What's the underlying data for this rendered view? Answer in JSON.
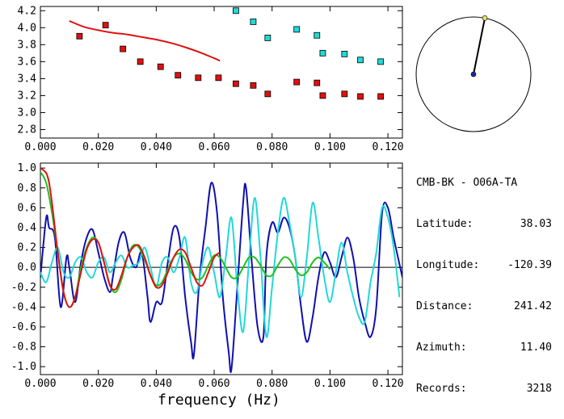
{
  "chart_data": [
    {
      "type": "scatter",
      "title": "",
      "xlim": [
        0.0,
        0.125
      ],
      "ylim": [
        2.7,
        4.25
      ],
      "xticks": [
        "0.000",
        "0.020",
        "0.040",
        "0.060",
        "0.080",
        "0.100",
        "0.120"
      ],
      "yticks": [
        "2.8",
        "3.0",
        "3.2",
        "3.4",
        "3.6",
        "3.8",
        "4.0",
        "4.2"
      ],
      "series": [
        {
          "name": "red-squares",
          "color": "#e01010",
          "kind": "points",
          "x": [
            0.0135,
            0.0225,
            0.0285,
            0.0345,
            0.0415,
            0.0475,
            0.0545,
            0.0615,
            0.0675,
            0.0735,
            0.0785,
            0.0885,
            0.0955,
            0.0975,
            0.105,
            0.1105,
            0.1175
          ],
          "y": [
            3.9,
            4.03,
            3.75,
            3.6,
            3.54,
            3.44,
            3.41,
            3.41,
            3.34,
            3.32,
            3.22,
            3.36,
            3.35,
            3.2,
            3.22,
            3.19,
            3.19
          ]
        },
        {
          "name": "cyan-squares",
          "color": "#22d8d8",
          "kind": "points",
          "x": [
            0.0675,
            0.0735,
            0.0785,
            0.0885,
            0.0955,
            0.0975,
            0.105,
            0.1105,
            0.1175
          ],
          "y": [
            4.2,
            4.07,
            3.88,
            3.98,
            3.91,
            3.7,
            3.69,
            3.62,
            3.6
          ]
        },
        {
          "name": "red-curve",
          "color": "#e01010",
          "kind": "line",
          "x": [
            0.01,
            0.015,
            0.02,
            0.025,
            0.03,
            0.035,
            0.04,
            0.045,
            0.05,
            0.055,
            0.06,
            0.062
          ],
          "y": [
            4.08,
            4.01,
            3.97,
            3.94,
            3.92,
            3.89,
            3.86,
            3.82,
            3.77,
            3.71,
            3.64,
            3.61
          ]
        }
      ]
    },
    {
      "type": "line",
      "title": "",
      "xlabel": "frequency (Hz)",
      "xlim": [
        0.0,
        0.125
      ],
      "ylim": [
        -1.08,
        1.05
      ],
      "xticks": [
        "0.000",
        "0.020",
        "0.040",
        "0.060",
        "0.080",
        "0.100",
        "0.120"
      ],
      "yticks": [
        "-1.0",
        "-0.8",
        "-0.6",
        "-0.4",
        "-0.2",
        "0.0",
        "0.2",
        "0.4",
        "0.6",
        "0.8",
        "1.0"
      ],
      "zero_line": true,
      "series": [
        {
          "name": "blue",
          "color": "#1010b0",
          "x": [
            0.0,
            0.002,
            0.003,
            0.005,
            0.007,
            0.009,
            0.01,
            0.012,
            0.014,
            0.016,
            0.018,
            0.02,
            0.022,
            0.024,
            0.025,
            0.027,
            0.029,
            0.031,
            0.033,
            0.035,
            0.037,
            0.038,
            0.04,
            0.042,
            0.044,
            0.046,
            0.048,
            0.05,
            0.052,
            0.053,
            0.055,
            0.057,
            0.059,
            0.061,
            0.063,
            0.065,
            0.066,
            0.068,
            0.07,
            0.071,
            0.073,
            0.075,
            0.077,
            0.078,
            0.08,
            0.082,
            0.084,
            0.086,
            0.088,
            0.09,
            0.092,
            0.094,
            0.096,
            0.098,
            0.1,
            0.102,
            0.104,
            0.106,
            0.108,
            0.11,
            0.112,
            0.114,
            0.116,
            0.118,
            0.12,
            0.122,
            0.125
          ],
          "y": [
            -0.1,
            0.5,
            0.4,
            0.3,
            -0.4,
            0.1,
            0.0,
            -0.35,
            0.05,
            0.3,
            0.38,
            0.15,
            -0.1,
            -0.25,
            -0.1,
            0.25,
            0.35,
            0.1,
            0.0,
            0.15,
            -0.3,
            -0.55,
            -0.35,
            -0.35,
            0.05,
            0.4,
            0.3,
            -0.3,
            -0.75,
            -0.88,
            -0.1,
            0.4,
            0.85,
            0.55,
            -0.3,
            -0.85,
            -1.02,
            -0.2,
            0.65,
            0.8,
            0.05,
            -0.6,
            -0.7,
            0.1,
            0.45,
            0.35,
            0.5,
            0.4,
            0.1,
            -0.4,
            -0.75,
            -0.5,
            -0.1,
            0.15,
            0.05,
            -0.1,
            0.1,
            0.3,
            0.1,
            -0.3,
            -0.55,
            -0.7,
            -0.4,
            0.55,
            0.6,
            0.3,
            -0.1
          ]
        },
        {
          "name": "cyan",
          "color": "#22d8d8",
          "x": [
            0.0,
            0.002,
            0.004,
            0.006,
            0.008,
            0.01,
            0.012,
            0.014,
            0.016,
            0.018,
            0.02,
            0.022,
            0.024,
            0.026,
            0.028,
            0.03,
            0.032,
            0.034,
            0.036,
            0.038,
            0.04,
            0.042,
            0.044,
            0.046,
            0.048,
            0.05,
            0.052,
            0.054,
            0.056,
            0.058,
            0.06,
            0.062,
            0.064,
            0.066,
            0.068,
            0.07,
            0.072,
            0.074,
            0.076,
            0.078,
            0.08,
            0.082,
            0.084,
            0.086,
            0.088,
            0.09,
            0.092,
            0.094,
            0.096,
            0.098,
            0.1,
            0.102,
            0.104,
            0.106,
            0.108,
            0.11,
            0.112,
            0.114,
            0.116,
            0.118,
            0.12,
            0.122,
            0.124
          ],
          "y": [
            -0.05,
            -0.15,
            0.05,
            0.2,
            -0.05,
            -0.1,
            0.05,
            0.1,
            -0.05,
            -0.1,
            0.05,
            0.1,
            -0.05,
            0.05,
            0.12,
            0.0,
            0.02,
            0.05,
            0.2,
            0.0,
            -0.2,
            0.05,
            0.1,
            -0.05,
            0.1,
            0.3,
            -0.15,
            -0.25,
            0.05,
            0.2,
            -0.05,
            -0.3,
            0.1,
            0.5,
            -0.2,
            -0.65,
            0.05,
            0.7,
            0.1,
            -0.7,
            -0.2,
            0.35,
            0.7,
            0.45,
            0.1,
            -0.3,
            0.1,
            0.65,
            0.3,
            -0.1,
            -0.35,
            -0.05,
            0.25,
            -0.05,
            -0.3,
            -0.5,
            -0.55,
            -0.15,
            0.15,
            0.6,
            0.5,
            0.2,
            -0.3
          ]
        },
        {
          "name": "green",
          "color": "#20c020",
          "x": [
            0.0,
            0.002,
            0.004,
            0.006,
            0.008,
            0.01,
            0.012,
            0.014,
            0.016,
            0.018,
            0.02,
            0.022,
            0.024,
            0.026,
            0.028,
            0.03,
            0.032,
            0.034,
            0.036,
            0.038,
            0.04,
            0.042,
            0.044,
            0.046,
            0.048,
            0.05,
            0.052,
            0.054,
            0.056,
            0.058,
            0.06,
            0.062,
            0.064,
            0.066,
            0.068,
            0.07,
            0.072,
            0.074,
            0.076,
            0.078,
            0.08,
            0.082,
            0.084,
            0.086,
            0.088,
            0.09,
            0.092,
            0.094,
            0.096,
            0.098,
            0.1
          ],
          "y": [
            0.96,
            0.85,
            0.55,
            0.15,
            -0.25,
            -0.4,
            -0.3,
            0.0,
            0.2,
            0.3,
            0.25,
            0.05,
            -0.18,
            -0.25,
            -0.12,
            0.1,
            0.22,
            0.2,
            0.08,
            -0.08,
            -0.18,
            -0.15,
            -0.02,
            0.1,
            0.14,
            0.08,
            -0.05,
            -0.12,
            -0.1,
            0.02,
            0.12,
            0.1,
            0.0,
            -0.1,
            -0.1,
            0.0,
            0.1,
            0.1,
            0.02,
            -0.08,
            -0.08,
            0.02,
            0.1,
            0.08,
            -0.02,
            -0.08,
            -0.05,
            0.05,
            0.1,
            0.05,
            -0.02
          ]
        },
        {
          "name": "red",
          "color": "#e01010",
          "x": [
            0.0,
            0.002,
            0.003,
            0.004,
            0.005,
            0.006,
            0.008,
            0.01,
            0.012,
            0.014,
            0.016,
            0.018,
            0.02,
            0.022,
            0.024,
            0.026,
            0.028,
            0.03,
            0.032,
            0.034,
            0.036,
            0.038,
            0.04,
            0.042,
            0.044,
            0.046,
            0.048,
            0.05,
            0.052,
            0.054,
            0.056,
            0.058,
            0.06,
            0.062
          ],
          "y": [
            1.0,
            0.95,
            0.85,
            0.65,
            0.4,
            0.15,
            -0.25,
            -0.4,
            -0.3,
            -0.05,
            0.18,
            0.28,
            0.25,
            0.05,
            -0.18,
            -0.22,
            -0.08,
            0.1,
            0.2,
            0.22,
            0.1,
            -0.08,
            -0.2,
            -0.18,
            -0.05,
            0.1,
            0.18,
            0.15,
            0.0,
            -0.15,
            -0.18,
            -0.05,
            0.1,
            0.15
          ]
        }
      ]
    }
  ],
  "polar": {
    "azimuth_deg": 11.4
  },
  "station": {
    "name": "CMB-BK - O06A-TA",
    "rows": [
      {
        "label": "Latitude:",
        "value": "38.03"
      },
      {
        "label": "Longitude:",
        "value": "-120.39"
      },
      {
        "label": "Distance:",
        "value": "241.42"
      },
      {
        "label": "Azimuth:",
        "value": "11.40"
      },
      {
        "label": "Records:",
        "value": "3218"
      }
    ]
  },
  "colors": {
    "axis": "#000000",
    "bg": "#ffffff",
    "polar_dot": "#1a2a9a",
    "polar_tip": "#e8e060"
  }
}
